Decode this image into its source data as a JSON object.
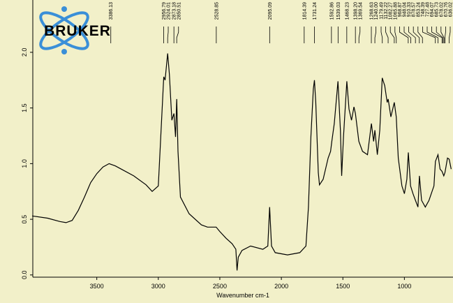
{
  "logo": "BRUKER",
  "chart_data": {
    "type": "line",
    "xlabel": "Wavenumber cm-1",
    "xlim": [
      4020,
      605
    ],
    "ylim": [
      -0.02,
      2.47
    ],
    "xticks": [
      3500,
      3000,
      2500,
      2000,
      1500,
      1000
    ],
    "yticks": [
      {
        "value": 0,
        "label": "0.0"
      },
      0.5,
      {
        "value": 1,
        "label": "1.0"
      },
      1.5,
      {
        "value": 2,
        "label": "2.0"
      }
    ],
    "color": "#000000",
    "peaks": [
      3386.13,
      2956.79,
      2924.01,
      2873.18,
      2850.51,
      2528.85,
      2095.09,
      1814.39,
      1731.24,
      1592.86,
      1539.03,
      1468.23,
      {
        "value": 1398.2,
        "label": "1398.20"
      },
      1369.54,
      1268.63,
      {
        "value": 1240,
        "label": "1240.00"
      },
      1179.49,
      1132.22,
      1082.27,
      1065.88,
      968.87,
      948.04,
      910.33,
      878.57,
      853.24,
      748.39,
      727.48,
      694.07,
      685.73,
      678.02,
      670.76,
      636.02
    ],
    "x": [
      4025,
      3900,
      3800,
      3750,
      3700,
      3650,
      3600,
      3550,
      3500,
      3450,
      3400,
      3350,
      3300,
      3200,
      3100,
      3050,
      3000,
      2980,
      2956,
      2945,
      2924,
      2910,
      2890,
      2873,
      2860,
      2850,
      2840,
      2820,
      2750,
      2650,
      2600,
      2530,
      2500,
      2450,
      2400,
      2370,
      2360,
      2350,
      2340,
      2320,
      2250,
      2150,
      2110,
      2095,
      2080,
      2050,
      1950,
      1850,
      1800,
      1780,
      1760,
      1740,
      1731,
      1720,
      1700,
      1690,
      1660,
      1620,
      1600,
      1590,
      1570,
      1540,
      1520,
      1510,
      1495,
      1468,
      1450,
      1430,
      1410,
      1398,
      1370,
      1340,
      1300,
      1268,
      1250,
      1240,
      1220,
      1200,
      1180,
      1160,
      1140,
      1132,
      1110,
      1082,
      1066,
      1050,
      1020,
      1000,
      980,
      968,
      950,
      930,
      910,
      890,
      878,
      860,
      830,
      800,
      760,
      748,
      727,
      710,
      694,
      680,
      670,
      650,
      636,
      620
    ],
    "values": [
      0.53,
      0.51,
      0.48,
      0.47,
      0.49,
      0.58,
      0.7,
      0.83,
      0.91,
      0.97,
      1.0,
      0.98,
      0.95,
      0.89,
      0.81,
      0.75,
      0.8,
      1.24,
      1.78,
      1.75,
      1.99,
      1.8,
      1.39,
      1.45,
      1.24,
      1.58,
      1.11,
      0.7,
      0.55,
      0.45,
      0.43,
      0.43,
      0.39,
      0.33,
      0.28,
      0.23,
      0.04,
      0.16,
      0.18,
      0.22,
      0.26,
      0.23,
      0.26,
      0.61,
      0.26,
      0.2,
      0.18,
      0.2,
      0.26,
      0.61,
      1.24,
      1.67,
      1.75,
      1.55,
      0.92,
      0.81,
      0.86,
      1.05,
      1.11,
      1.2,
      1.36,
      1.74,
      1.3,
      0.89,
      1.24,
      1.74,
      1.49,
      1.39,
      1.51,
      1.45,
      1.2,
      1.11,
      1.08,
      1.36,
      1.2,
      1.3,
      1.08,
      1.3,
      1.77,
      1.7,
      1.55,
      1.58,
      1.42,
      1.55,
      1.42,
      1.05,
      0.8,
      0.73,
      0.86,
      1.1,
      0.8,
      0.73,
      0.67,
      0.61,
      0.89,
      0.67,
      0.61,
      0.67,
      0.8,
      1.02,
      1.08,
      0.95,
      0.93,
      0.89,
      0.92,
      1.05,
      1.04,
      0.95
    ]
  }
}
